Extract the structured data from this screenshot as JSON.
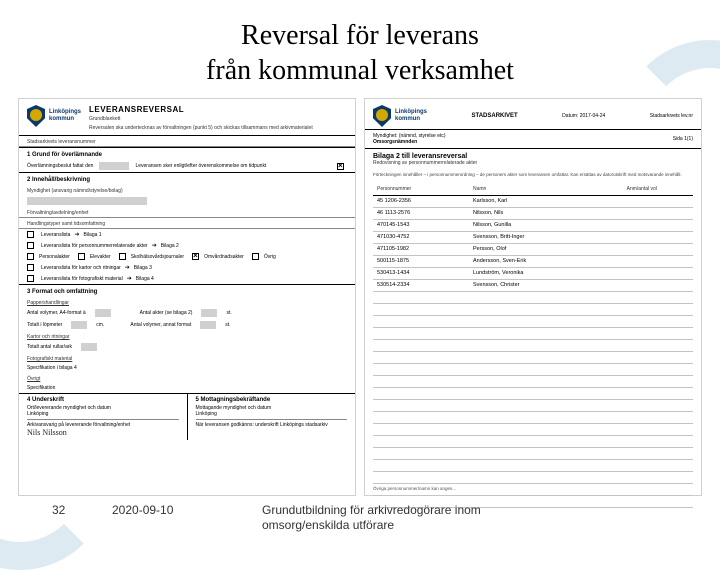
{
  "title_line1": "Reversal för leverans",
  "title_line2": "från kommunal verksamhet",
  "footer": {
    "page": "32",
    "date": "2020-09-10",
    "text1": "Grundutbildning för arkivredogörare inom",
    "text2": "omsorg/enskilda utförare"
  },
  "left_doc": {
    "logo_text": "Linköpings\nkommun",
    "title": "LEVERANSREVERSAL",
    "subtitle": "Grundblankett",
    "note": "Reversalen ska undertecknas av förvaltningen (punkt 5) och skickas tillsammans med arkivmaterialet",
    "field_stadsarkiv": "Stadsarkivets leveransnummer",
    "sec1": "1  Grund för överlämnande",
    "sec1_text": "Överlämningsbeslut fattat den",
    "sec1_text2": "Leveransen sker enligt/efter överenskommelse om tidpunkt",
    "sec2": "2  Innehåll/beskrivning",
    "sec2_f1": "Myndighet (ansvarig nämnd/styrelse/bolag)",
    "sec2_f2": "Förvaltning/avdelning/enhet",
    "sec2_f3": "Handlingstyper samt tidsomfattning",
    "bilaga": [
      {
        "label": "Leveranslista",
        "to": "Bilaga 1"
      },
      {
        "label": "Leveranslista för personnummerrelaterade akter",
        "to": "Bilaga 2"
      },
      {
        "label": "Leveranslista för kartor och ritningar",
        "to": "Bilaga 3"
      },
      {
        "label": "Leveranslista för fotografiskt material",
        "to": "Bilaga 4"
      }
    ],
    "checkboxes": [
      {
        "label": "Personalakter",
        "checked": false
      },
      {
        "label": "Elevakter",
        "checked": false
      },
      {
        "label": "Skolhälsovårdsjournaler",
        "checked": false
      },
      {
        "label": "Omvårdnadsakter",
        "checked": true
      },
      {
        "label": "Övrig",
        "checked": false
      }
    ],
    "sec3": "3  Format och omfattning",
    "sec3_f1": "Pappershandlingar",
    "sec3_f2": "Antal volymer, A4-format à",
    "sec3_f2b": "Antal akter (se bilaga 2)",
    "sec3_f3": "Totalt i löpmeter",
    "sec3_f4": "Antal volymer, annat format",
    "sec3_kartor": "Kartor och ritningar",
    "sec3_kartor2": "Totalt antal rullar/ark",
    "sec3_foto": "Fotografiskt material",
    "sec3_spec": "Specifikation i bilaga 4",
    "sec3_ovr": "Övrigt",
    "sec3_spec2": "Specifikation",
    "sec4": "4  Underskrift",
    "sec5": "5  Mottagningsbekräftande",
    "ort": "Ort/levererande myndighet och datum",
    "ort_val": "Linköping",
    "ort2": "Mottagande myndighet och datum",
    "ort2_val": "Linköping",
    "sig_label": "Arkivansvarig på levererande förvaltning/enhet",
    "sig_label2": "När leveransen godkänns: underskrift Linköpings stadsarkiv",
    "sig_name": "Nils Nilsson"
  },
  "right_doc": {
    "logo_text": "Linköpings\nkommun",
    "stadsarkiv": "STADSARKIVET",
    "datum_lbl": "Datum:",
    "datum": "2017-04-24",
    "leveransnr": "Stadsarkivets lev.nr",
    "sida": "Sida 1(1)",
    "myndig_lbl": "Myndighet: (nämnd, styrelse etc)",
    "myndig_val": "Omsorgsnämnden",
    "title": "Bilaga 2 till leveransreversal",
    "subtitle": "Redovisning av personnummerrelaterade akter",
    "note": "Förteckningen innehåller – i personnummerordning – de personers akter som leveransen omfattar. Kan ersättas av datorutskrift med motsvarande innehåll.",
    "col1": "Personnummer",
    "col2": "Namn",
    "col3": "Anm/antal vol",
    "rows": [
      [
        "45 1206-2356",
        "Karlsson, Karl",
        ""
      ],
      [
        "46 1113-2576",
        "Nilsson, Nils",
        ""
      ],
      [
        "470145-1543",
        "Nilsson, Gunilla",
        ""
      ],
      [
        "471030-4752",
        "Svensson, Britt-Inger",
        ""
      ],
      [
        "471105-1982",
        "Persson, Olof",
        ""
      ],
      [
        "500115-1875",
        "Andersson, Sven-Erik",
        ""
      ],
      [
        "530413-1434",
        "Lundström, Veronika",
        ""
      ],
      [
        "530514-2334",
        "Svensson, Christer",
        ""
      ]
    ],
    "empty_rows": 18,
    "foot": "Övriga personnummer/namn kan anges..."
  },
  "colors": {
    "bg": "#ffffff",
    "text": "#000000",
    "logo_blue": "#0a3a6a",
    "logo_gold": "#d4a800",
    "gray_field": "#d0d0d0",
    "swoosh": "rgba(160,195,215,0.35)",
    "border": "#888888"
  }
}
